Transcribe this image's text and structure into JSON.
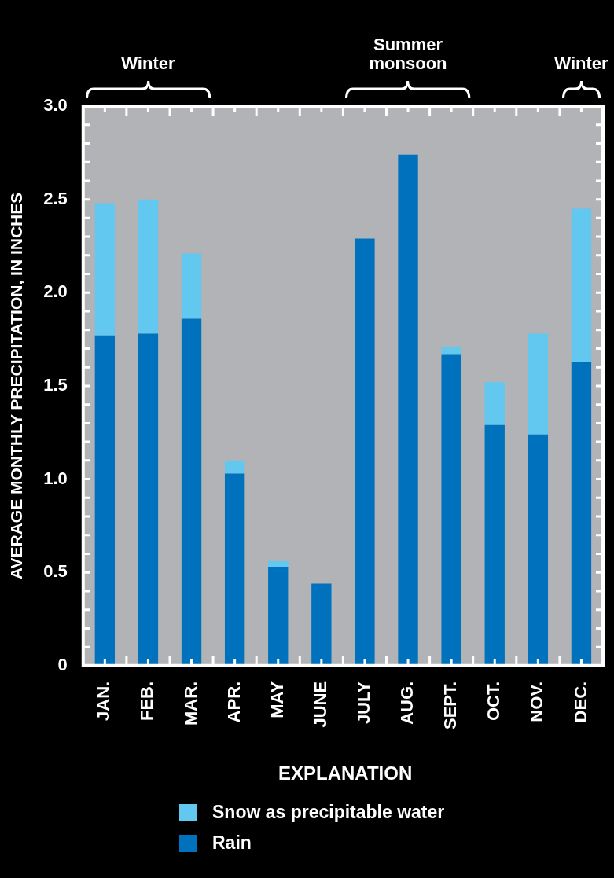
{
  "chart_data": {
    "type": "bar",
    "stacked": true,
    "ylabel": "AVERAGE MONTHLY PRECIPITATION, IN INCHES",
    "legend_title": "EXPLANATION",
    "legend": "bottom",
    "categories": [
      "JAN.",
      "FEB.",
      "MAR.",
      "APR.",
      "MAY",
      "JUNE",
      "JULY",
      "AUG.",
      "SEPT.",
      "OCT.",
      "NOV.",
      "DEC."
    ],
    "series": [
      {
        "name": "Rain",
        "color": "#0071bc",
        "values": [
          1.77,
          1.78,
          1.86,
          1.03,
          0.53,
          0.44,
          2.29,
          2.74,
          1.67,
          1.29,
          1.24,
          1.63
        ]
      },
      {
        "name": "Snow as precipitable water",
        "color": "#62c8f0",
        "values": [
          0.71,
          0.72,
          0.35,
          0.07,
          0.03,
          0,
          0,
          0,
          0.04,
          0.23,
          0.54,
          0.82
        ]
      }
    ],
    "ylim": [
      0,
      3
    ],
    "yticks": [
      0,
      {
        "value": 0.5,
        "label": "0.5"
      },
      {
        "value": 1,
        "label": "1.0"
      },
      {
        "value": 1.5,
        "label": "1.5"
      },
      {
        "value": 2,
        "label": "2.0"
      },
      {
        "value": 2.5,
        "label": "2.5"
      },
      {
        "value": 3,
        "label": "3.0"
      }
    ],
    "annotations": [
      "Winter",
      "Summer\nmonsoon",
      "Winter"
    ]
  }
}
